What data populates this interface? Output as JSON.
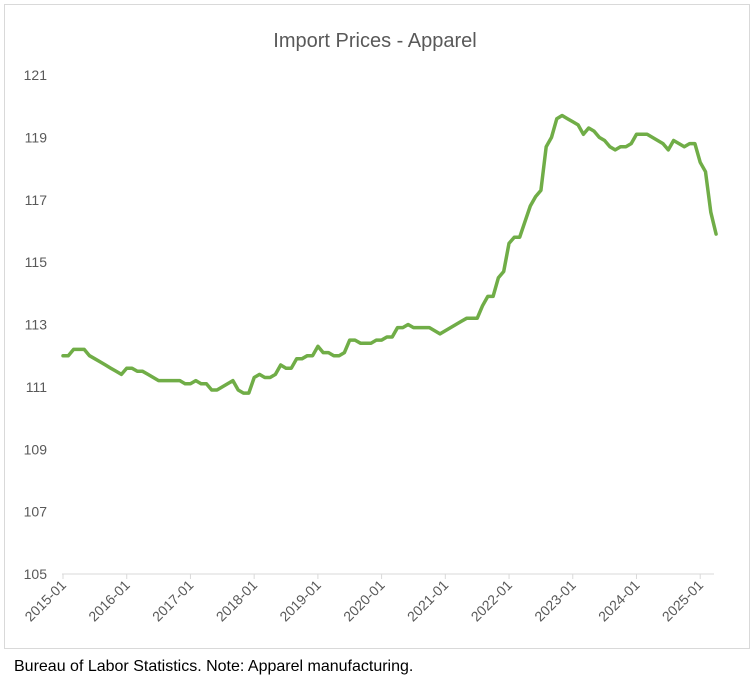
{
  "chart_data": {
    "type": "line",
    "title": "Import Prices - Apparel",
    "xlabel": "",
    "ylabel": "",
    "ylim": [
      105,
      121
    ],
    "y_ticks": [
      "105",
      "107",
      "109",
      "111",
      "113",
      "115",
      "117",
      "119",
      "121"
    ],
    "x_ticks": [
      "2015-01",
      "2016-01",
      "2017-01",
      "2018-01",
      "2019-01",
      "2020-01",
      "2021-01",
      "2022-01",
      "2023-01",
      "2024-01",
      "2025-01"
    ],
    "grid": false,
    "legend": "none",
    "color": "#70ad47",
    "series": [
      {
        "values": [
          112.0,
          112.0,
          112.2,
          112.2,
          112.2,
          112.0,
          111.9,
          111.8,
          111.7,
          111.6,
          111.5,
          111.4,
          111.6,
          111.6,
          111.5,
          111.5,
          111.4,
          111.3,
          111.2,
          111.2,
          111.2,
          111.2,
          111.2,
          111.1,
          111.1,
          111.2,
          111.1,
          111.1,
          110.9,
          110.9,
          111.0,
          111.1,
          111.2,
          110.9,
          110.8,
          110.8,
          111.3,
          111.4,
          111.3,
          111.3,
          111.4,
          111.7,
          111.6,
          111.6,
          111.9,
          111.9,
          112.0,
          112.0,
          112.3,
          112.1,
          112.1,
          112.0,
          112.0,
          112.1,
          112.5,
          112.5,
          112.4,
          112.4,
          112.4,
          112.5,
          112.5,
          112.6,
          112.6,
          112.9,
          112.9,
          113.0,
          112.9,
          112.9,
          112.9,
          112.9,
          112.8,
          112.7,
          112.8,
          112.9,
          113.0,
          113.1,
          113.2,
          113.2,
          113.2,
          113.6,
          113.9,
          113.9,
          114.5,
          114.7,
          115.6,
          115.8,
          115.8,
          116.3,
          116.8,
          117.1,
          117.3,
          118.7,
          119.0,
          119.6,
          119.7,
          119.6,
          119.5,
          119.4,
          119.1,
          119.3,
          119.2,
          119.0,
          118.9,
          118.7,
          118.6,
          118.7,
          118.7,
          118.8,
          119.1,
          119.1,
          119.1,
          119.0,
          118.9,
          118.8,
          118.6,
          118.9,
          118.8,
          118.7,
          118.8,
          118.8,
          118.2,
          117.9,
          116.6,
          115.9
        ]
      }
    ]
  },
  "footnote": "Bureau of Labor Statistics. Note: Apparel manufacturing."
}
